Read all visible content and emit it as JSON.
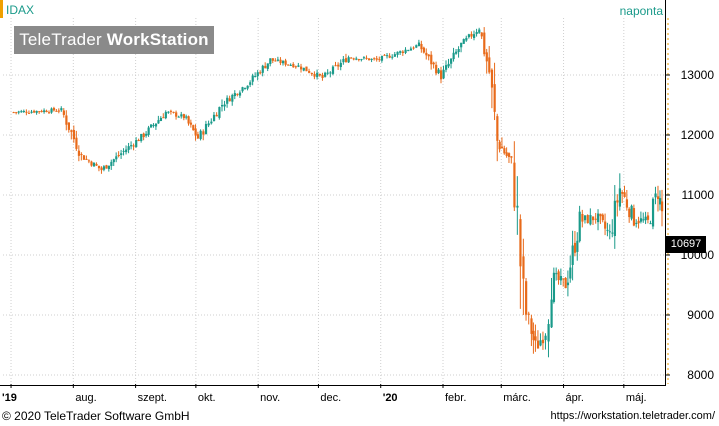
{
  "header": {
    "symbol": "IDAX",
    "interval": "naponta"
  },
  "watermark": {
    "brand_light": "TeleTrader ",
    "brand_bold": "WorkStation"
  },
  "last_price": "10697",
  "footer": {
    "copyright": "© 2020 TeleTrader Software GmbH",
    "url": "https://workstation.teletrader.com/"
  },
  "colors": {
    "up": "#1a9a8a",
    "down": "#e86a1a",
    "accent": "#f0a000",
    "grid": "#cfcfcf"
  },
  "chart_data": {
    "type": "candlestick",
    "title": "",
    "xlabel": "",
    "ylabel": "",
    "ylim": [
      7850,
      13950
    ],
    "y_ticks": [
      8000,
      9000,
      10000,
      11000,
      12000,
      13000
    ],
    "y_tick_labels": [
      "8000",
      "9000",
      "10000",
      "11000",
      "12000",
      "13000"
    ],
    "x_tick_labels": [
      "'19",
      "aug.",
      "szept.",
      "okt.",
      "nov.",
      "dec.",
      "'20",
      "febr.",
      "márc.",
      "ápr.",
      "máj."
    ],
    "x_tick_bold": [
      true,
      false,
      false,
      false,
      false,
      false,
      true,
      false,
      false,
      false,
      false
    ],
    "grid": true,
    "series_close_approx": [
      {
        "x": "2019-07-01",
        "y": 12380
      },
      {
        "x": "2019-07-15",
        "y": 12400
      },
      {
        "x": "2019-07-26",
        "y": 12420
      },
      {
        "x": "2019-08-05",
        "y": 11650
      },
      {
        "x": "2019-08-15",
        "y": 11420
      },
      {
        "x": "2019-08-26",
        "y": 11730
      },
      {
        "x": "2019-09-05",
        "y": 12000
      },
      {
        "x": "2019-09-16",
        "y": 12380
      },
      {
        "x": "2019-09-25",
        "y": 12300
      },
      {
        "x": "2019-10-02",
        "y": 11950
      },
      {
        "x": "2019-10-14",
        "y": 12510
      },
      {
        "x": "2019-10-28",
        "y": 12900
      },
      {
        "x": "2019-11-07",
        "y": 13250
      },
      {
        "x": "2019-11-21",
        "y": 13150
      },
      {
        "x": "2019-12-03",
        "y": 12950
      },
      {
        "x": "2019-12-16",
        "y": 13300
      },
      {
        "x": "2019-12-30",
        "y": 13250
      },
      {
        "x": "2020-01-08",
        "y": 13350
      },
      {
        "x": "2020-01-20",
        "y": 13500
      },
      {
        "x": "2020-01-31",
        "y": 12980
      },
      {
        "x": "2020-02-10",
        "y": 13500
      },
      {
        "x": "2020-02-19",
        "y": 13790
      },
      {
        "x": "2020-02-24",
        "y": 13050
      },
      {
        "x": "2020-02-28",
        "y": 11890
      },
      {
        "x": "2020-03-06",
        "y": 11540
      },
      {
        "x": "2020-03-09",
        "y": 10630
      },
      {
        "x": "2020-03-12",
        "y": 9160
      },
      {
        "x": "2020-03-16",
        "y": 8740
      },
      {
        "x": "2020-03-18",
        "y": 8440
      },
      {
        "x": "2020-03-23",
        "y": 8740
      },
      {
        "x": "2020-03-26",
        "y": 9650
      },
      {
        "x": "2020-04-02",
        "y": 9500
      },
      {
        "x": "2020-04-09",
        "y": 10560
      },
      {
        "x": "2020-04-17",
        "y": 10630
      },
      {
        "x": "2020-04-24",
        "y": 10340
      },
      {
        "x": "2020-04-29",
        "y": 11110
      },
      {
        "x": "2020-05-06",
        "y": 10600
      },
      {
        "x": "2020-05-13",
        "y": 10550
      },
      {
        "x": "2020-05-18",
        "y": 11060
      },
      {
        "x": "2020-05-20",
        "y": 10697
      }
    ]
  }
}
